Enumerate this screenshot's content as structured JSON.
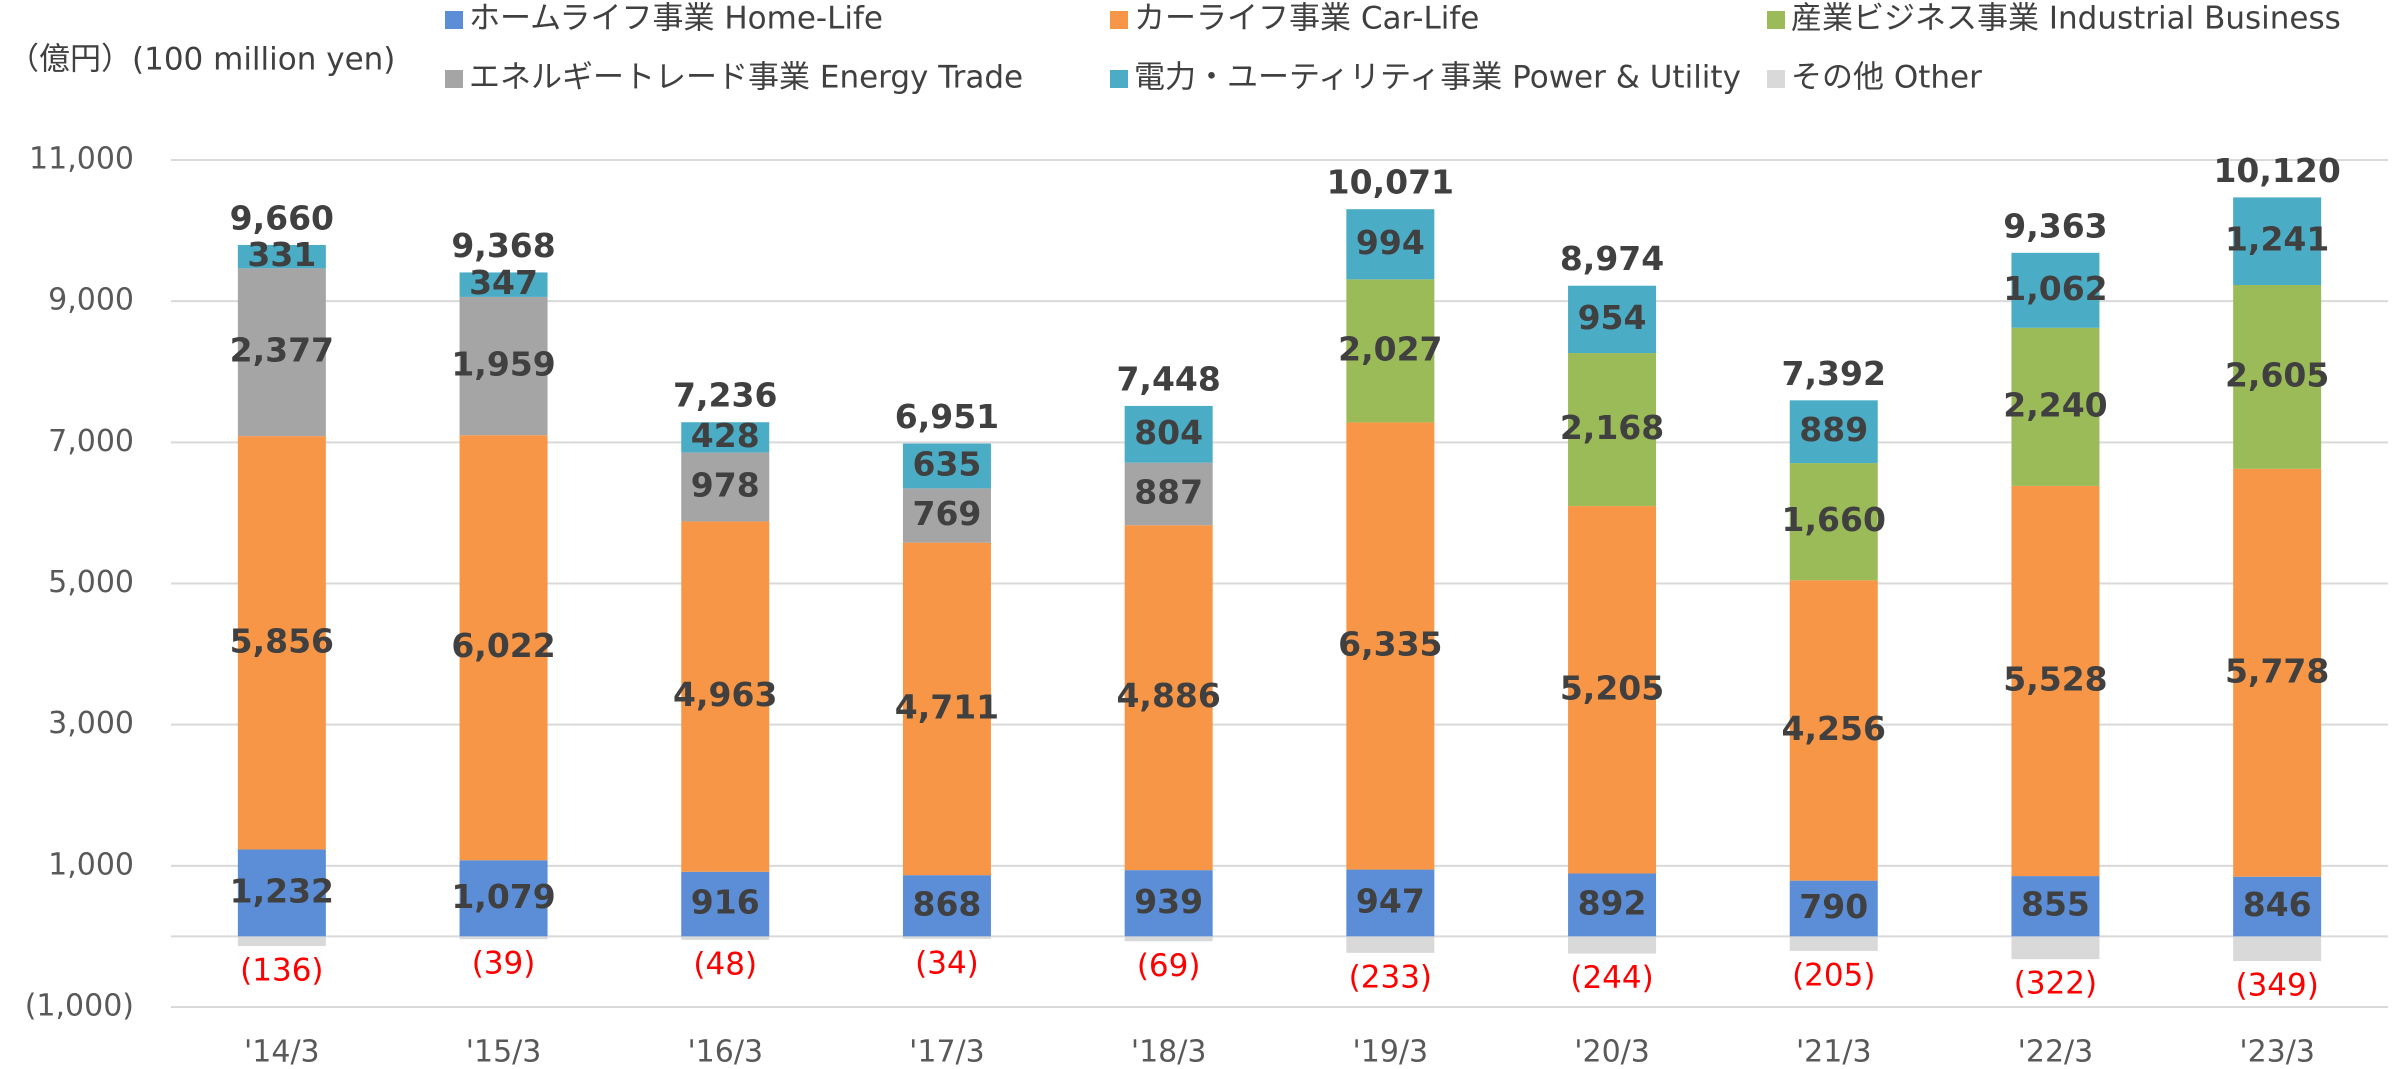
{
  "chart_data": {
    "type": "stacked_bar",
    "y_unit_label": "（億円）(100 million yen)",
    "categories": [
      "'14/3",
      "'15/3",
      "'16/3",
      "'17/3",
      "'18/3",
      "'19/3",
      "'20/3",
      "'21/3",
      "'22/3",
      "'23/3"
    ],
    "series": [
      {
        "name": "ホームライフ事業 Home-Life",
        "color": "#5b8ed6",
        "values": [
          1232,
          1079,
          916,
          868,
          939,
          947,
          892,
          790,
          855,
          846
        ],
        "value_labels": [
          "1,232",
          "1,079",
          "916",
          "868",
          "939",
          "947",
          "892",
          "790",
          "855",
          "846"
        ]
      },
      {
        "name": "カーライフ事業 Car-Life",
        "color": "#f79646",
        "values": [
          5856,
          6022,
          4963,
          4711,
          4886,
          6335,
          5205,
          4256,
          5528,
          5778
        ],
        "value_labels": [
          "5,856",
          "6,022",
          "4,963",
          "4,711",
          "4,886",
          "6,335",
          "5,205",
          "4,256",
          "5,528",
          "5,778"
        ]
      },
      {
        "name": "産業ビジネス事業 Industrial Business",
        "color": "#9bbb59",
        "values": [
          null,
          null,
          null,
          null,
          null,
          2027,
          2168,
          1660,
          2240,
          2605
        ],
        "value_labels": [
          null,
          null,
          null,
          null,
          null,
          "2,027",
          "2,168",
          "1,660",
          "2,240",
          "2,605"
        ]
      },
      {
        "name": "エネルギートレード事業 Energy Trade",
        "color": "#a5a5a5",
        "values": [
          2377,
          1959,
          978,
          769,
          887,
          null,
          null,
          null,
          null,
          null
        ],
        "value_labels": [
          "2,377",
          "1,959",
          "978",
          "769",
          "887",
          null,
          null,
          null,
          null,
          null
        ]
      },
      {
        "name": "電力・ユーティリティ事業 Power & Utility",
        "color": "#4bacc6",
        "values": [
          331,
          347,
          428,
          635,
          804,
          994,
          954,
          889,
          1062,
          1241
        ],
        "value_labels": [
          "331",
          "347",
          "428",
          "635",
          "804",
          "994",
          "954",
          "889",
          "1,062",
          "1,241"
        ]
      },
      {
        "name": "その他 Other",
        "color": "#d9d9d9",
        "values": [
          -136,
          -39,
          -48,
          -34,
          -69,
          -233,
          -244,
          -205,
          -322,
          -349
        ],
        "value_labels": [
          "(136)",
          "(39)",
          "(48)",
          "(34)",
          "(69)",
          "(233)",
          "(244)",
          "(205)",
          "(322)",
          "(349)"
        ]
      }
    ],
    "totals": [
      9660,
      9368,
      7236,
      6951,
      7448,
      10071,
      8974,
      7392,
      9363,
      10120
    ],
    "total_labels": [
      "9,660",
      "9,368",
      "7,236",
      "6,951",
      "7,448",
      "10,071",
      "8,974",
      "7,392",
      "9,363",
      "10,120"
    ],
    "ylim": [
      -1000,
      11000
    ],
    "yticks": [
      {
        "value": -1000,
        "label": "(1,000)"
      },
      {
        "value": 1000,
        "label": "1,000"
      },
      {
        "value": 3000,
        "label": "3,000"
      },
      {
        "value": 5000,
        "label": "5,000"
      },
      {
        "value": 7000,
        "label": "7,000"
      },
      {
        "value": 9000,
        "label": "9,000"
      },
      {
        "value": 11000,
        "label": "11,000"
      }
    ],
    "grid": true
  }
}
